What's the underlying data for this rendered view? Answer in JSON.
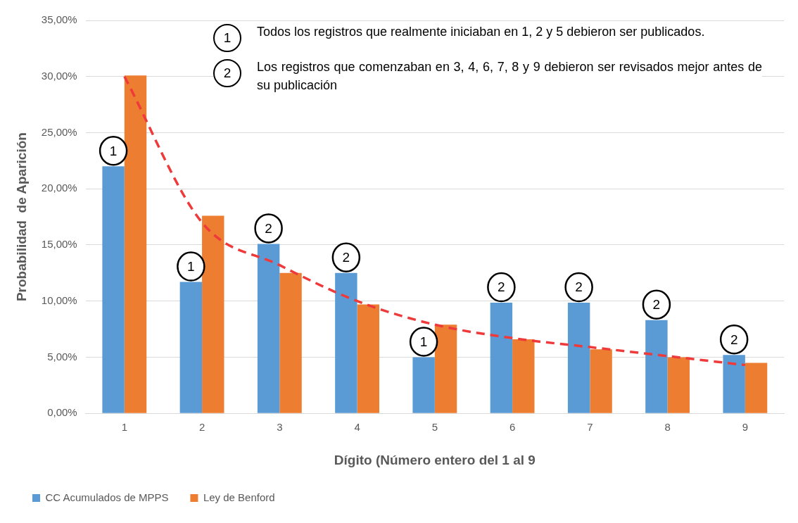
{
  "chart_data": {
    "type": "bar",
    "xlabel": "Dígito (Número entero del 1 al 9",
    "ylabel": "Probabilidad  de Aparición",
    "categories": [
      "1",
      "2",
      "3",
      "4",
      "5",
      "6",
      "7",
      "8",
      "9"
    ],
    "series": [
      {
        "name": "CC Acumulados de MPPS",
        "color": "#5b9bd5",
        "values": [
          22.0,
          11.7,
          15.1,
          12.5,
          5.0,
          9.85,
          9.85,
          8.3,
          5.2
        ]
      },
      {
        "name": "Ley de Benford",
        "color": "#ed7d31",
        "values": [
          30.1,
          17.6,
          12.5,
          9.7,
          7.9,
          6.6,
          5.7,
          5.0,
          4.5
        ]
      },
      {
        "type": "line",
        "color": "#ee3a3a",
        "line_style": "dashed",
        "marker": "none",
        "values": [
          30.0,
          17.0,
          13.2,
          10.0,
          7.9,
          6.7,
          5.9,
          5.1,
          4.3
        ]
      }
    ],
    "ylim": [
      0,
      35
    ],
    "yticks": [
      {
        "value": 0,
        "label": "0,00%"
      },
      {
        "value": 5,
        "label": "5,00%"
      },
      {
        "value": 10,
        "label": "10,00%"
      },
      {
        "value": 15,
        "label": "15,00%"
      },
      {
        "value": 20,
        "label": "20,00%"
      },
      {
        "value": 25,
        "label": "25,00%"
      },
      {
        "value": 30,
        "label": "30,00%"
      },
      {
        "value": 35,
        "label": "35,00%"
      }
    ],
    "grid": "y",
    "legend": "bottom left",
    "annotations": [
      "1",
      "1",
      "2",
      "2",
      "1",
      "2",
      "2",
      "2",
      "2",
      "1",
      "Todos los registros que realmente iniciaban en 1, 2 y 5 debieron ser publicados.",
      "2",
      "Los registros que comenzaban en 3, 4, 6, 7, 8 y 9 debieron ser revisados mejor antes de su publicación"
    ]
  }
}
